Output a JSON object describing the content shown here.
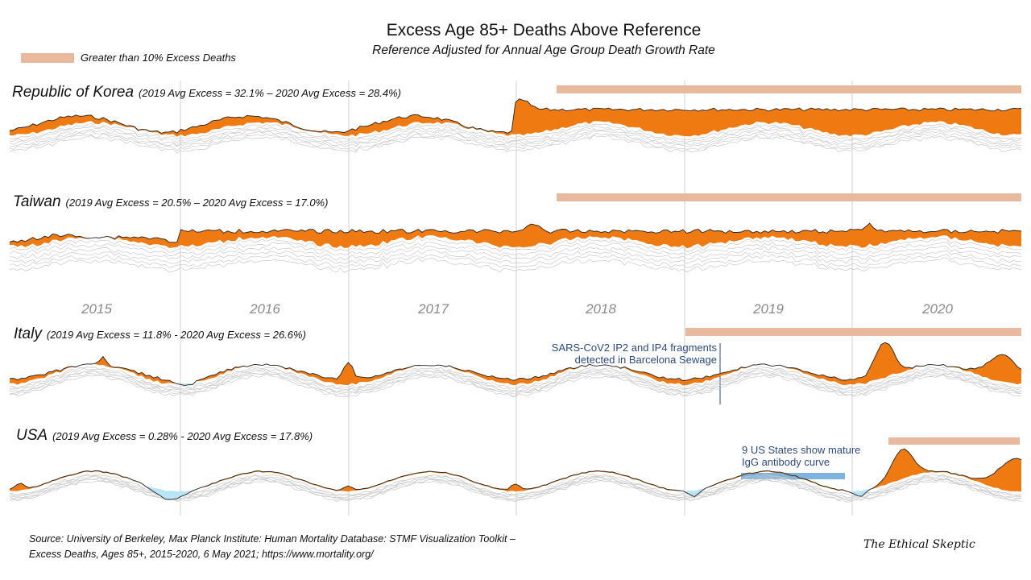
{
  "title": "Excess Age 85+ Deaths Above Reference",
  "subtitle": "Reference Adjusted for Annual Age Group Death Growth Rate",
  "legend": {
    "label": "Greater than 10% Excess Deaths",
    "color": "#e8b99c"
  },
  "colors": {
    "excess": "#ef7a12",
    "deficit": "#b9e4f5",
    "reference": "#c8c8c8",
    "grid": "#d0d0d0",
    "annotation_bar": "#7fb4df"
  },
  "years": [
    "2015",
    "2016",
    "2017",
    "2018",
    "2019",
    "2020"
  ],
  "panels": [
    {
      "name": "Republic of Korea",
      "subtitle": "(2019 Avg Excess = 32.1%  –  2020 Avg Excess = 28.4%)"
    },
    {
      "name": "Taiwan",
      "subtitle": "(2019 Avg Excess = 20.5%  –  2020 Avg Excess = 17.0%)"
    },
    {
      "name": "Italy",
      "subtitle": "(2019 Avg Excess = 11.8%  -  2020 Avg Excess = 26.6%)"
    },
    {
      "name": "USA",
      "subtitle": "(2019 Avg Excess = 0.28%  -  2020 Avg Excess = 17.8%)"
    }
  ],
  "annotations": {
    "italy": [
      "SARS-CoV2 IP2 and IP4 fragments",
      "detected in Barcelona Sewage"
    ],
    "usa": [
      "9 US States show mature",
      "IgG antibody curve"
    ]
  },
  "source": [
    "Source:  University of Berkeley, Max Planck Institute: Human Mortality Database: STMF Visualization Toolkit –",
    "Excess Deaths, Ages 85+, 2015-2020,  6 May 2021;  https://www.mortality.org/"
  ],
  "brand": "The Ethical Skeptic",
  "chart_data": {
    "type": "area",
    "x": [
      "2015",
      "2016",
      "2017",
      "2018",
      "2019",
      "2020"
    ],
    "series": [
      {
        "name": "Republic of Korea",
        "values": [
          null,
          null,
          null,
          null,
          32.1,
          28.4
        ]
      },
      {
        "name": "Taiwan",
        "values": [
          null,
          null,
          null,
          null,
          20.5,
          17.0
        ]
      },
      {
        "name": "Italy",
        "values": [
          null,
          null,
          null,
          null,
          11.8,
          26.6
        ]
      },
      {
        "name": "USA",
        "values": [
          null,
          null,
          null,
          null,
          0.28,
          17.8
        ]
      }
    ]
  }
}
